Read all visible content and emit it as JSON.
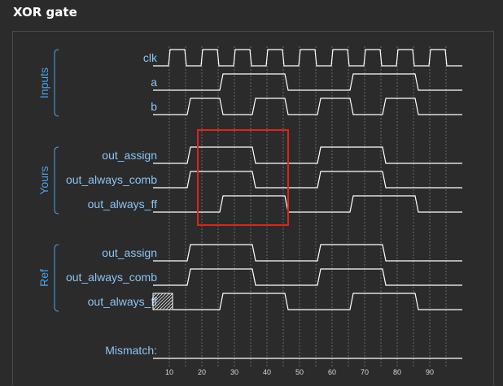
{
  "title": "XOR gate",
  "groups": [
    {
      "label": "Inputs",
      "signals": [
        "clk",
        "a",
        "b"
      ]
    },
    {
      "label": "Yours",
      "signals": [
        "out_assign",
        "out_always_comb",
        "out_always_ff"
      ]
    },
    {
      "label": "Ref",
      "signals": [
        "out_assign",
        "out_always_comb",
        "out_always_ff"
      ]
    }
  ],
  "mismatch_label": "Mismatch:",
  "time_axis": {
    "ticks": [
      10,
      20,
      30,
      40,
      50,
      60,
      70,
      80,
      90
    ],
    "min": 5,
    "max": 100
  },
  "chart_data": {
    "type": "timing",
    "clock": {
      "name": "clk",
      "period": 10,
      "first_rise": 10,
      "high_time": 5
    },
    "signals": [
      {
        "group": "Inputs",
        "name": "a",
        "initial": 0,
        "edges": [
          [
            26,
            1
          ],
          [
            46,
            0
          ],
          [
            66,
            1
          ],
          [
            86,
            0
          ]
        ]
      },
      {
        "group": "Inputs",
        "name": "b",
        "initial": 0,
        "edges": [
          [
            16,
            1
          ],
          [
            26,
            0
          ],
          [
            36,
            1
          ],
          [
            46,
            0
          ],
          [
            56,
            1
          ],
          [
            66,
            0
          ],
          [
            76,
            1
          ],
          [
            86,
            0
          ]
        ]
      },
      {
        "group": "Yours",
        "name": "out_assign",
        "initial": 0,
        "edges": [
          [
            16,
            1
          ],
          [
            36,
            0
          ],
          [
            56,
            1
          ],
          [
            76,
            0
          ]
        ]
      },
      {
        "group": "Yours",
        "name": "out_always_comb",
        "initial": 0,
        "edges": [
          [
            16,
            1
          ],
          [
            36,
            0
          ],
          [
            56,
            1
          ],
          [
            76,
            0
          ]
        ]
      },
      {
        "group": "Yours",
        "name": "out_always_ff",
        "initial": 0,
        "edges": [
          [
            26,
            1
          ],
          [
            46,
            0
          ],
          [
            66,
            1
          ],
          [
            86,
            0
          ]
        ]
      },
      {
        "group": "Ref",
        "name": "out_assign",
        "initial": 0,
        "edges": [
          [
            16,
            1
          ],
          [
            36,
            0
          ],
          [
            56,
            1
          ],
          [
            76,
            0
          ]
        ]
      },
      {
        "group": "Ref",
        "name": "out_always_comb",
        "initial": 0,
        "edges": [
          [
            16,
            1
          ],
          [
            36,
            0
          ],
          [
            56,
            1
          ],
          [
            76,
            0
          ]
        ]
      },
      {
        "group": "Ref",
        "name": "out_always_ff",
        "initial": "x",
        "edges": [
          [
            11,
            0
          ],
          [
            26,
            1
          ],
          [
            46,
            0
          ],
          [
            66,
            1
          ],
          [
            86,
            0
          ]
        ]
      },
      {
        "group": "Mismatch",
        "name": "Mismatch:",
        "initial": 0,
        "edges": []
      }
    ],
    "highlight": {
      "t_start": 19,
      "t_end": 46,
      "rows": [
        "out_assign",
        "out_always_comb",
        "out_always_ff"
      ],
      "group": "Yours",
      "color": "#e0231b"
    },
    "colors": {
      "wave": "#ffffff",
      "label": "#8cc4f4",
      "group": "#4aa0e8",
      "grid": "#6a6a6a",
      "background": "#2b2b2b"
    }
  }
}
